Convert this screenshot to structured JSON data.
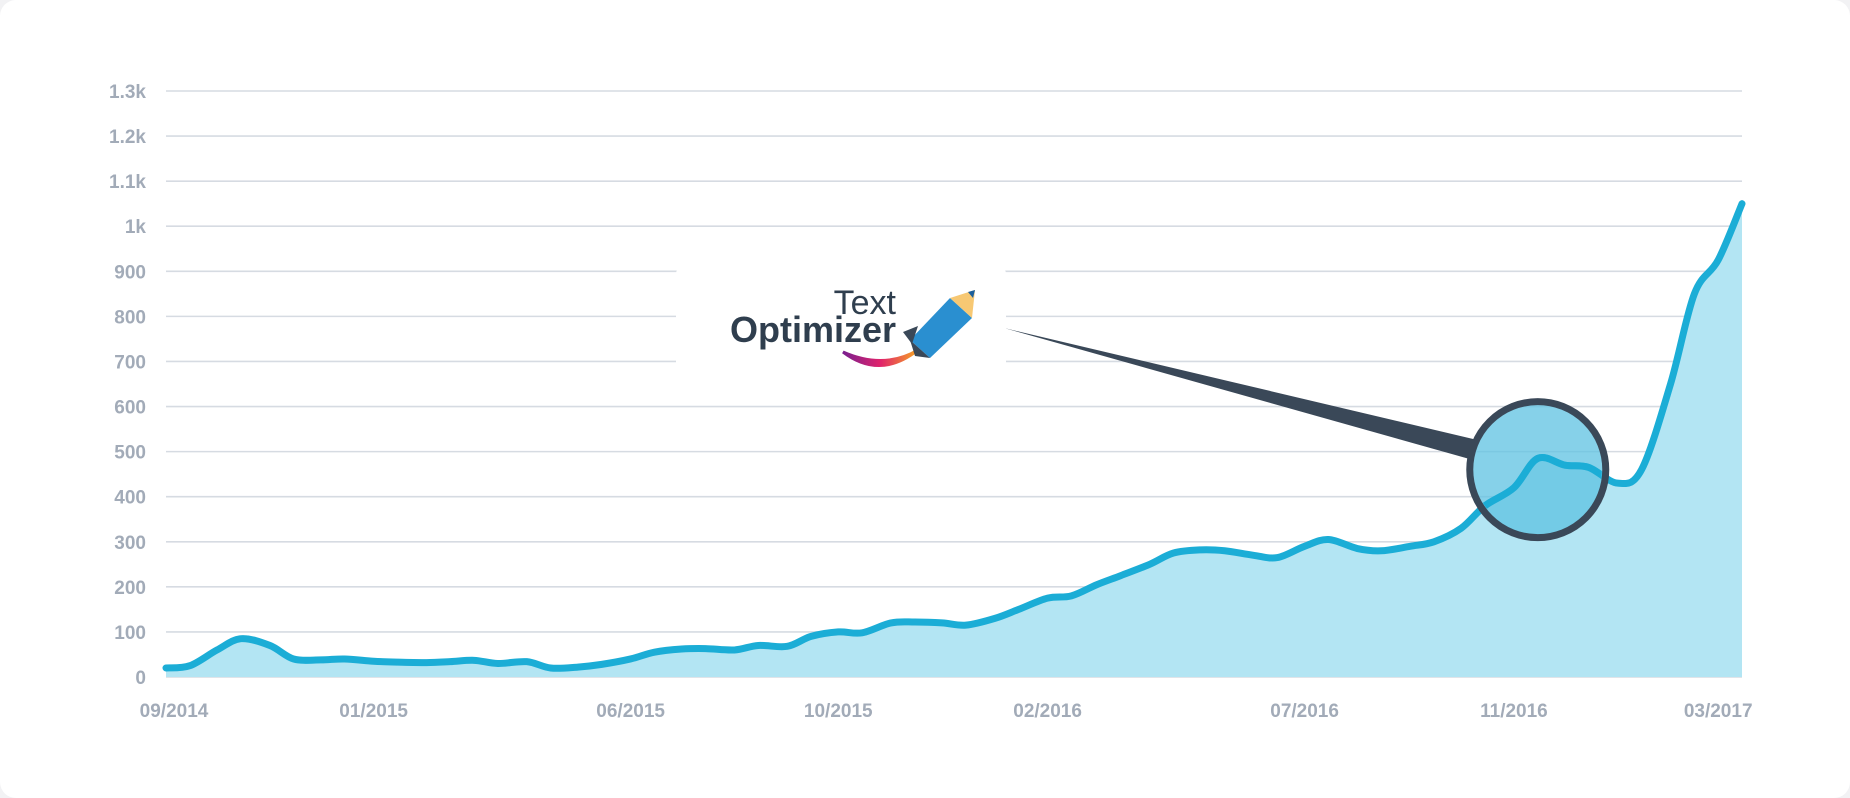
{
  "chart_data": {
    "type": "area",
    "title": "",
    "xlabel": "",
    "ylabel": "",
    "ylim": [
      0,
      1300
    ],
    "grid": true,
    "y_ticks": [
      "0",
      "100",
      "200",
      "300",
      "400",
      "500",
      "600",
      "700",
      "800",
      "900",
      "1k",
      "1.1k",
      "1.2k",
      "1.3k"
    ],
    "x_ticks": [
      "09/2014",
      "01/2015",
      "06/2015",
      "10/2015",
      "02/2016",
      "07/2016",
      "11/2016",
      "03/2017"
    ],
    "colors": {
      "line": "#1badd6",
      "fill": "#b3e5f3",
      "grid": "#d6dbe2",
      "tick_text": "#a2abb8",
      "magnifier": "#3a4858",
      "magnifier_fill": "#5ec2e2"
    },
    "x": [
      "2014-09-01",
      "2014-09-15",
      "2014-10-01",
      "2014-10-15",
      "2014-11-01",
      "2014-11-15",
      "2014-12-01",
      "2014-12-15",
      "2015-01-01",
      "2015-01-15",
      "2015-02-01",
      "2015-02-15",
      "2015-03-01",
      "2015-03-15",
      "2015-04-01",
      "2015-04-15",
      "2015-05-01",
      "2015-05-15",
      "2015-06-01",
      "2015-06-15",
      "2015-07-01",
      "2015-07-15",
      "2015-08-01",
      "2015-08-15",
      "2015-09-01",
      "2015-09-15",
      "2015-10-01",
      "2015-10-15",
      "2015-11-01",
      "2015-11-15",
      "2015-12-01",
      "2015-12-15",
      "2016-01-01",
      "2016-01-15",
      "2016-02-01",
      "2016-02-15",
      "2016-03-01",
      "2016-03-15",
      "2016-04-01",
      "2016-04-15",
      "2016-05-01",
      "2016-05-15",
      "2016-06-01",
      "2016-06-15",
      "2016-07-01",
      "2016-07-15",
      "2016-08-01",
      "2016-08-15",
      "2016-09-01",
      "2016-09-15",
      "2016-10-01",
      "2016-10-15",
      "2016-11-01",
      "2016-11-15",
      "2016-12-01",
      "2016-12-15",
      "2017-01-01",
      "2017-01-15",
      "2017-02-01",
      "2017-02-15",
      "2017-03-01",
      "2017-03-15"
    ],
    "series": [
      {
        "values": [
          20,
          25,
          60,
          85,
          70,
          40,
          38,
          40,
          35,
          33,
          32,
          34,
          37,
          30,
          34,
          20,
          22,
          28,
          40,
          55,
          62,
          63,
          60,
          70,
          68,
          90,
          100,
          98,
          120,
          122,
          120,
          115,
          130,
          150,
          175,
          180,
          205,
          225,
          250,
          275,
          282,
          280,
          270,
          265,
          290,
          305,
          285,
          280,
          290,
          300,
          330,
          380,
          420,
          485,
          470,
          465,
          430,
          460,
          650,
          850,
          925,
          1050
        ]
      }
    ]
  },
  "annotation": {
    "logo_line1": "Text",
    "logo_line2": "Optimizer",
    "callout_date": "2016-11-15"
  }
}
